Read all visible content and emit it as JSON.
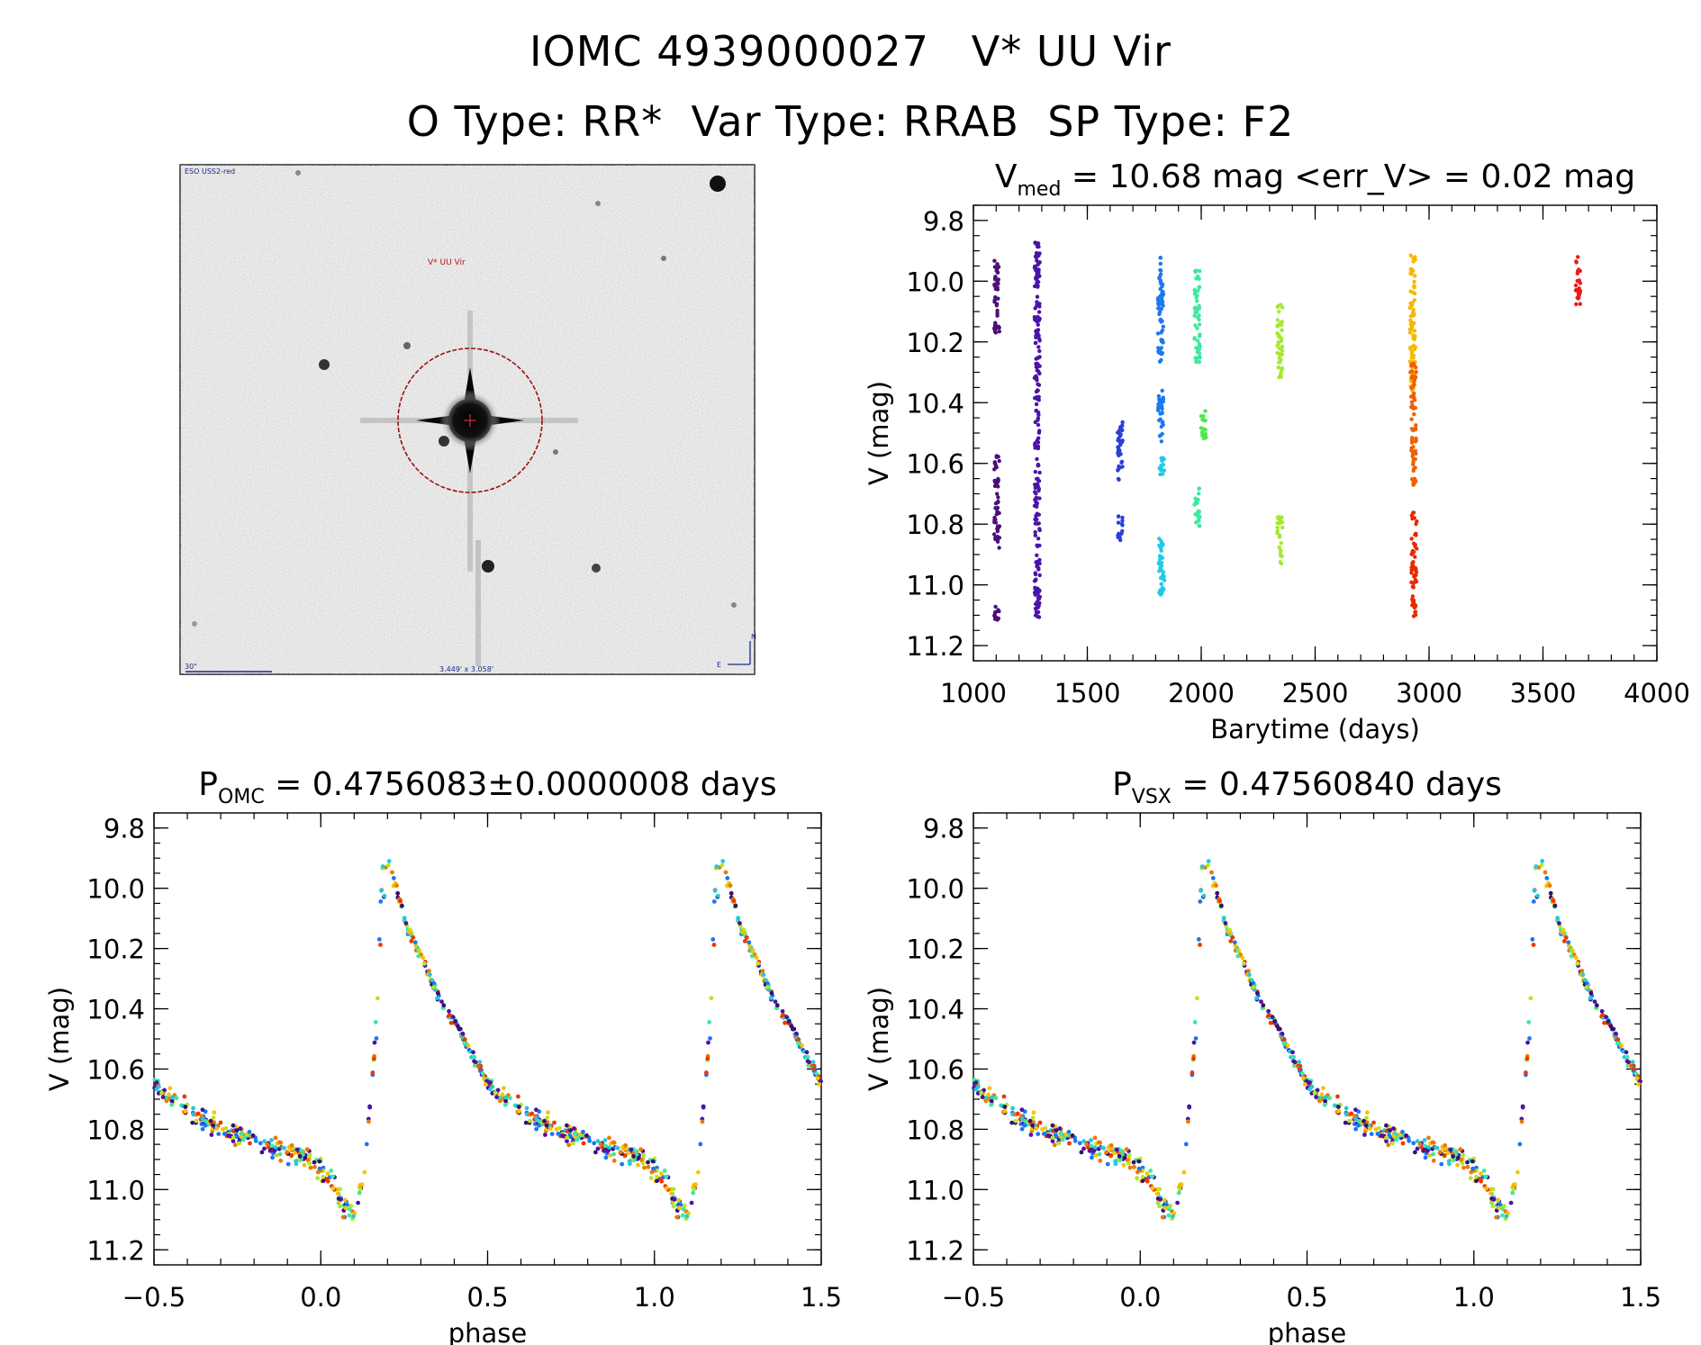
{
  "header": {
    "line1": "IOMC 4939000027   V* UU Vir",
    "line2": "O Type: RR*  Var Type: RRAB  SP Type: F2"
  },
  "finder": {
    "survey_label": "ESO USS2-red",
    "target_label": "V* UU Vir",
    "scale_label": "30\"",
    "fov_label": "3.449' x 3.058'",
    "compass_n": "N",
    "compass_e": "E"
  },
  "chart_data": [
    {
      "id": "lightcurve",
      "type": "scatter",
      "title_parts": [
        "V",
        "med",
        " = 10.68 mag <err_V> = 0.02 mag"
      ],
      "xlabel": "Barytime (days)",
      "ylabel": "V (mag)",
      "xlim": [
        1000,
        4000
      ],
      "ylim": [
        11.25,
        9.75
      ],
      "y_inverted": true,
      "xticks": [
        1000,
        1500,
        2000,
        2500,
        3000,
        3500,
        4000
      ],
      "xtick_labels": [
        "1000",
        "1500",
        "2000",
        "2500",
        "3000",
        "3500",
        "4000"
      ],
      "yticks": [
        9.8,
        10.0,
        10.2,
        10.4,
        10.6,
        10.8,
        11.0,
        11.2
      ],
      "ytick_labels": [
        "9.8",
        "10.0",
        "10.2",
        "10.4",
        "10.6",
        "10.8",
        "11.0",
        "11.2"
      ],
      "series": [
        {
          "x": 1103,
          "segments": [
            [
              9.93,
              10.17
            ],
            [
              10.57,
              10.88
            ],
            [
              11.05,
              11.12
            ]
          ],
          "color": "#4b0f7a"
        },
        {
          "x": 1280,
          "segments": [
            [
              9.87,
              11.12
            ]
          ],
          "color": "#4a14a8"
        },
        {
          "x": 1645,
          "segments": [
            [
              10.45,
              10.66
            ],
            [
              10.77,
              10.86
            ]
          ],
          "color": "#2a3fd8"
        },
        {
          "x": 1822,
          "segments": [
            [
              9.92,
              10.27
            ],
            [
              10.36,
              10.53
            ]
          ],
          "color": "#1a78f0"
        },
        {
          "x": 1826,
          "segments": [
            [
              10.58,
              10.65
            ],
            [
              10.82,
              11.04
            ]
          ],
          "color": "#1ecbe6"
        },
        {
          "x": 1982,
          "segments": [
            [
              9.96,
              10.27
            ],
            [
              10.68,
              10.82
            ]
          ],
          "color": "#3ee8a0"
        },
        {
          "x": 2010,
          "segments": [
            [
              10.42,
              10.52
            ]
          ],
          "color": "#4ce84c"
        },
        {
          "x": 2345,
          "segments": [
            [
              10.07,
              10.33
            ],
            [
              10.77,
              10.93
            ]
          ],
          "color": "#a6e830"
        },
        {
          "x": 2928,
          "segments": [
            [
              9.91,
              10.36
            ]
          ],
          "color": "#f5b800"
        },
        {
          "x": 2932,
          "segments": [
            [
              10.27,
              10.68
            ]
          ],
          "color": "#f06000"
        },
        {
          "x": 2934,
          "segments": [
            [
              10.76,
              11.11
            ]
          ],
          "color": "#e62a00"
        },
        {
          "x": 3652,
          "segments": [
            [
              9.92,
              10.08
            ]
          ],
          "color": "#ee1a1a"
        }
      ]
    },
    {
      "id": "phase_omc",
      "type": "scatter",
      "title_parts": [
        "P",
        "OMC",
        " = 0.4756083±0.0000008 days"
      ],
      "xlabel": "phase",
      "ylabel": "V (mag)",
      "xlim": [
        -0.5,
        1.5
      ],
      "ylim": [
        11.25,
        9.75
      ],
      "y_inverted": true,
      "xticks": [
        -0.5,
        0.0,
        0.5,
        1.0,
        1.5
      ],
      "xtick_labels": [
        "−0.5",
        "0.0",
        "0.5",
        "1.0",
        "1.5"
      ],
      "yticks": [
        9.8,
        10.0,
        10.2,
        10.4,
        10.6,
        10.8,
        11.0,
        11.2
      ],
      "ytick_labels": [
        "9.8",
        "10.0",
        "10.2",
        "10.4",
        "10.6",
        "10.8",
        "11.0",
        "11.2"
      ],
      "template": [
        [
          0.0,
          10.65
        ],
        [
          0.1,
          10.74
        ],
        [
          0.2,
          10.8
        ],
        [
          0.35,
          10.86
        ],
        [
          0.45,
          10.89
        ],
        [
          0.52,
          10.95
        ],
        [
          0.57,
          11.06
        ],
        [
          0.6,
          11.08
        ],
        [
          0.63,
          10.95
        ],
        [
          0.66,
          10.55
        ],
        [
          0.685,
          9.93
        ],
        [
          0.7,
          9.9
        ],
        [
          0.76,
          10.13
        ],
        [
          0.85,
          10.35
        ],
        [
          0.93,
          10.5
        ],
        [
          1.0,
          10.65
        ]
      ],
      "phase_shift": 0.5,
      "colors": [
        "#3a0f6e",
        "#4a14a8",
        "#1a78f0",
        "#22c9e0",
        "#3ee8a0",
        "#b5e628",
        "#f5c400",
        "#f07800",
        "#e83a00"
      ]
    },
    {
      "id": "phase_vsx",
      "type": "scatter",
      "title_parts": [
        "P",
        "VSX",
        " = 0.47560840 days"
      ],
      "xlabel": "phase",
      "ylabel": "V (mag)",
      "xlim": [
        -0.5,
        1.5
      ],
      "ylim": [
        11.25,
        9.75
      ],
      "y_inverted": true,
      "xticks": [
        -0.5,
        0.0,
        0.5,
        1.0,
        1.5
      ],
      "xtick_labels": [
        "−0.5",
        "0.0",
        "0.5",
        "1.0",
        "1.5"
      ],
      "yticks": [
        9.8,
        10.0,
        10.2,
        10.4,
        10.6,
        10.8,
        11.0,
        11.2
      ],
      "ytick_labels": [
        "9.8",
        "10.0",
        "10.2",
        "10.4",
        "10.6",
        "10.8",
        "11.0",
        "11.2"
      ],
      "template": [
        [
          0.0,
          10.65
        ],
        [
          0.1,
          10.74
        ],
        [
          0.2,
          10.8
        ],
        [
          0.35,
          10.86
        ],
        [
          0.45,
          10.89
        ],
        [
          0.52,
          10.95
        ],
        [
          0.57,
          11.06
        ],
        [
          0.6,
          11.08
        ],
        [
          0.63,
          10.95
        ],
        [
          0.66,
          10.55
        ],
        [
          0.685,
          9.93
        ],
        [
          0.7,
          9.9
        ],
        [
          0.76,
          10.13
        ],
        [
          0.85,
          10.35
        ],
        [
          0.93,
          10.5
        ],
        [
          1.0,
          10.65
        ]
      ],
      "phase_shift": 0.5,
      "colors": [
        "#3a0f6e",
        "#4a14a8",
        "#1a78f0",
        "#22c9e0",
        "#3ee8a0",
        "#b5e628",
        "#f5c400",
        "#f07800",
        "#e83a00"
      ]
    }
  ]
}
